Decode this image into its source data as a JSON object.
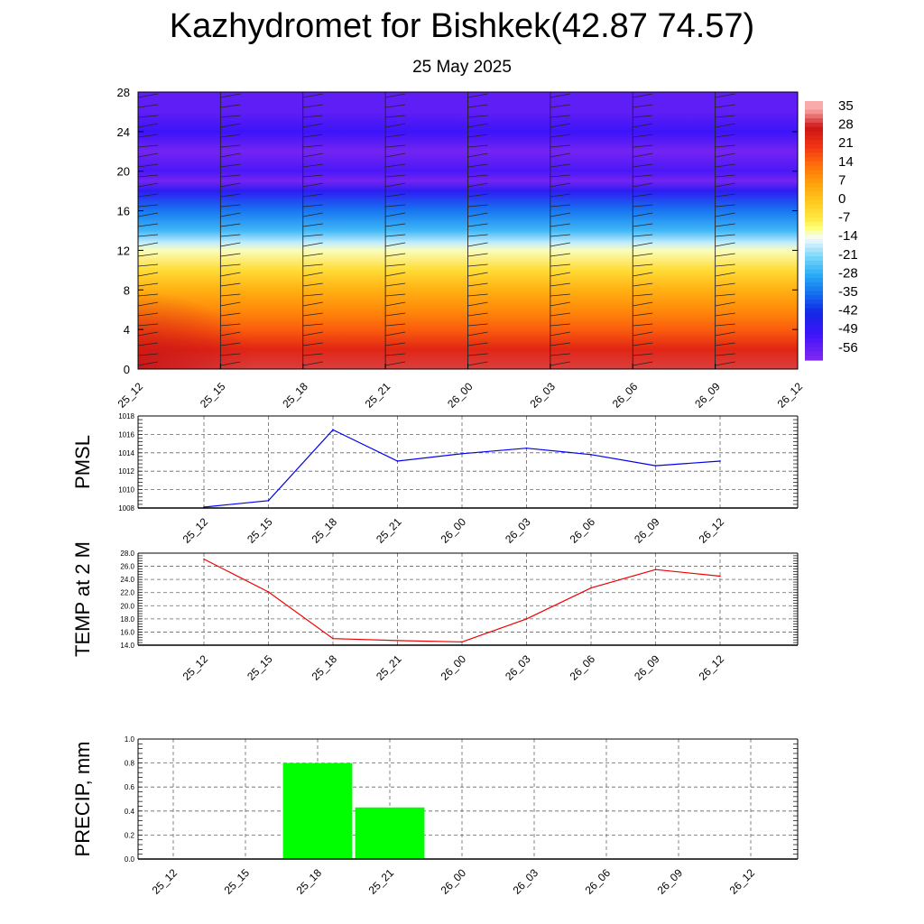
{
  "title": "Kazhydromet for Bishkek(42.87 74.57)",
  "subtitle": "25 May 2025",
  "chart_data": [
    {
      "type": "heatmap",
      "description_of_field": "cross-section colour field with wind barbs",
      "x_ticks": [
        "25_12",
        "25_15",
        "25_18",
        "25_21",
        "26_00",
        "26_03",
        "26_06",
        "26_09",
        "26_12"
      ],
      "y_ticks": [
        "0",
        "4",
        "8",
        "12",
        "16",
        "20",
        "24",
        "28"
      ],
      "ylim": [
        0,
        28
      ],
      "colorbar_labels": [
        "35",
        "28",
        "21",
        "14",
        "7",
        "0",
        "-7",
        "-14",
        "-21",
        "-28",
        "-35",
        "-42",
        "-49",
        "-56"
      ],
      "colorbar_range": [
        -60,
        38
      ],
      "layers": [
        {
          "y": 0,
          "value": 30
        },
        {
          "y": 2,
          "value": 24
        },
        {
          "y": 4,
          "value": 16
        },
        {
          "y": 6,
          "value": 10
        },
        {
          "y": 8,
          "value": 4
        },
        {
          "y": 10,
          "value": -4
        },
        {
          "y": 12,
          "value": -12
        },
        {
          "y": 12.8,
          "value": -17
        },
        {
          "y": 14,
          "value": -26
        },
        {
          "y": 16,
          "value": -34
        },
        {
          "y": 18,
          "value": -47
        },
        {
          "y": 19,
          "value": -58
        },
        {
          "y": 20,
          "value": -52
        },
        {
          "y": 22,
          "value": -58
        },
        {
          "y": 24,
          "value": -50
        },
        {
          "y": 26,
          "value": -55
        },
        {
          "y": 28,
          "value": -55
        }
      ]
    },
    {
      "type": "line",
      "ylabel": "PMSL",
      "categories": [
        "25_12",
        "25_15",
        "25_18",
        "25_21",
        "26_00",
        "26_03",
        "26_06",
        "26_09",
        "26_12"
      ],
      "values": [
        1008.1,
        1008.8,
        1016.5,
        1013.1,
        1013.9,
        1014.5,
        1013.8,
        1012.6,
        1013.1
      ],
      "ylim": [
        1008,
        1018
      ],
      "yticks": [
        "1008",
        "1010",
        "1012",
        "1014",
        "1016",
        "1018"
      ],
      "color": "#0000ee",
      "grid": true
    },
    {
      "type": "line",
      "ylabel": "TEMP at 2 M",
      "categories": [
        "25_12",
        "25_15",
        "25_18",
        "25_21",
        "26_00",
        "26_03",
        "26_06",
        "26_09",
        "26_12"
      ],
      "values": [
        27.1,
        22.1,
        15.0,
        14.7,
        14.5,
        18.0,
        22.7,
        25.5,
        24.5
      ],
      "ylim": [
        14,
        28
      ],
      "yticks": [
        "14.0",
        "16.0",
        "18.0",
        "20.0",
        "22.0",
        "24.0",
        "26.0",
        "28.0"
      ],
      "color": "#ee0000",
      "grid": true
    },
    {
      "type": "bar",
      "ylabel": "PRECIP, mm",
      "categories": [
        "25_12",
        "25_15",
        "25_18",
        "25_21",
        "26_00",
        "26_03",
        "26_06",
        "26_09",
        "26_12"
      ],
      "values": [
        0,
        0,
        0.8,
        0.43,
        0,
        0,
        0,
        0,
        0
      ],
      "ylim": [
        0,
        1
      ],
      "yticks": [
        "0.0",
        "0.2",
        "0.4",
        "0.6",
        "0.8",
        "1.0"
      ],
      "color": "#00ff00",
      "grid": true
    }
  ]
}
